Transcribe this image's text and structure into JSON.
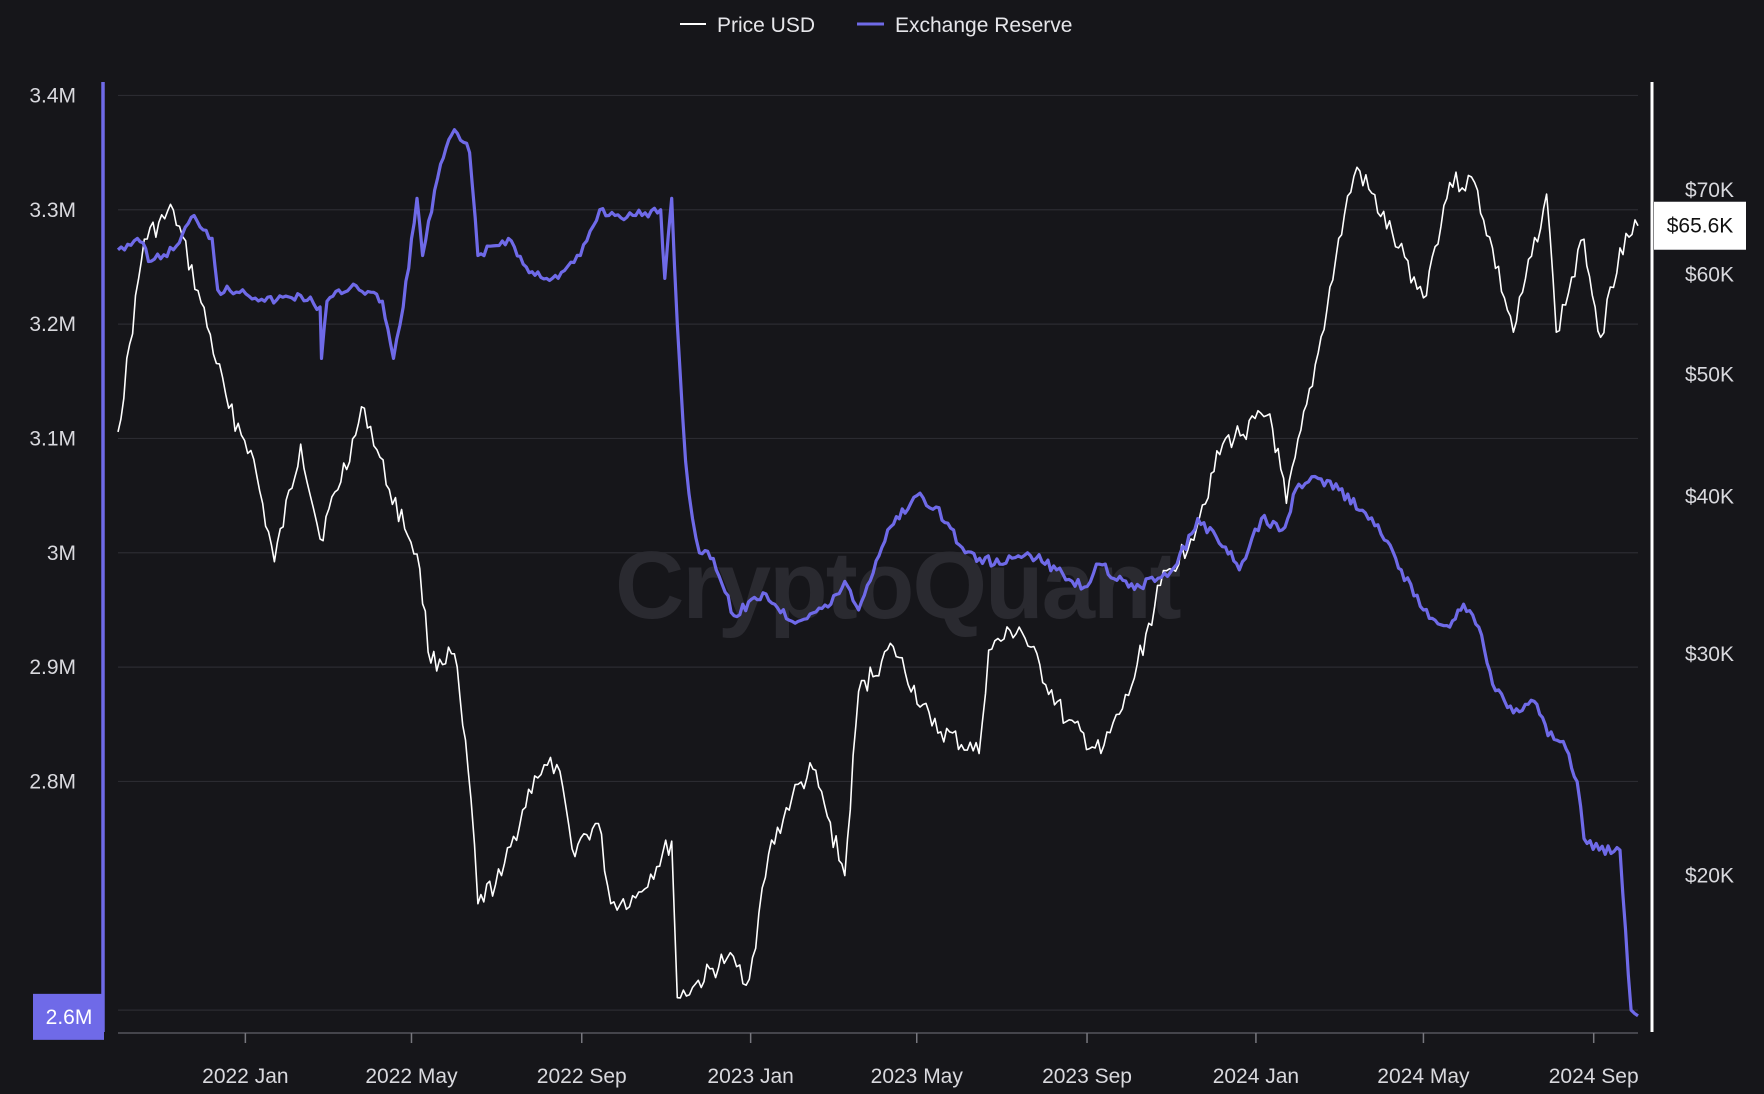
{
  "legend": [
    {
      "label": "Price USD",
      "color": "#ffffff"
    },
    {
      "label": "Exchange Reserve",
      "color": "#6f6ae8"
    }
  ],
  "watermark": "CryptoQuant",
  "colors": {
    "background": "#16161a",
    "grid": "#2b2b31",
    "price": "#ffffff",
    "reserve": "#6f6ae8"
  },
  "chart_data": {
    "type": "line",
    "x_axis": {
      "type": "date",
      "ticks": [
        "2022 Jan",
        "2022 May",
        "2022 Sep",
        "2023 Jan",
        "2023 May",
        "2023 Sep",
        "2024 Jan",
        "2024 May",
        "2024 Sep"
      ],
      "range": [
        "2021-10-01",
        "2024-10-03"
      ]
    },
    "y_left": {
      "label": "",
      "ticks": [
        "3.4M",
        "3.3M",
        "3.2M",
        "3.1M",
        "3M",
        "2.9M",
        "2.8M"
      ],
      "range": [
        2580000,
        3410000
      ],
      "current_value_label": "2.6M"
    },
    "y_right": {
      "label": "",
      "scale": "log",
      "ticks": [
        "$70K",
        "$60K",
        "$50K",
        "$40K",
        "$30K",
        "$20K"
      ],
      "range": [
        15000,
        85000
      ],
      "current_value_label": "$65.6K"
    },
    "grid": true,
    "legend_position": "top-center",
    "series": [
      {
        "name": "Price USD",
        "axis": "right",
        "color": "#ffffff",
        "points": [
          [
            "2021-10-01",
            45000
          ],
          [
            "2021-10-20",
            64000
          ],
          [
            "2021-11-10",
            67500
          ],
          [
            "2021-11-30",
            57000
          ],
          [
            "2021-12-20",
            47000
          ],
          [
            "2022-01-05",
            43500
          ],
          [
            "2022-01-22",
            35500
          ],
          [
            "2022-02-10",
            44000
          ],
          [
            "2022-02-24",
            37000
          ],
          [
            "2022-03-28",
            47000
          ],
          [
            "2022-04-15",
            40500
          ],
          [
            "2022-05-05",
            36000
          ],
          [
            "2022-05-15",
            29500
          ],
          [
            "2022-06-01",
            30000
          ],
          [
            "2022-06-13",
            23000
          ],
          [
            "2022-06-18",
            19000
          ],
          [
            "2022-07-05",
            20000
          ],
          [
            "2022-07-29",
            24000
          ],
          [
            "2022-08-14",
            24500
          ],
          [
            "2022-08-25",
            21000
          ],
          [
            "2022-09-13",
            22000
          ],
          [
            "2022-09-22",
            19000
          ],
          [
            "2022-10-10",
            19200
          ],
          [
            "2022-11-05",
            21300
          ],
          [
            "2022-11-09",
            16000
          ],
          [
            "2022-11-20",
            16300
          ],
          [
            "2022-12-15",
            17200
          ],
          [
            "2022-12-31",
            16550
          ],
          [
            "2023-01-14",
            20800
          ],
          [
            "2023-01-31",
            23100
          ],
          [
            "2023-02-15",
            24300
          ],
          [
            "2023-03-10",
            20000
          ],
          [
            "2023-03-20",
            28000
          ],
          [
            "2023-04-14",
            30400
          ],
          [
            "2023-05-12",
            26300
          ],
          [
            "2023-06-15",
            25000
          ],
          [
            "2023-06-22",
            30200
          ],
          [
            "2023-07-14",
            31500
          ],
          [
            "2023-08-17",
            26500
          ],
          [
            "2023-09-11",
            25000
          ],
          [
            "2023-10-01",
            27800
          ],
          [
            "2023-10-24",
            34000
          ],
          [
            "2023-11-15",
            37000
          ],
          [
            "2023-12-08",
            44000
          ],
          [
            "2024-01-11",
            46500
          ],
          [
            "2024-01-23",
            39500
          ],
          [
            "2024-02-15",
            52000
          ],
          [
            "2024-03-05",
            67000
          ],
          [
            "2024-03-14",
            73000
          ],
          [
            "2024-04-13",
            63000
          ],
          [
            "2024-05-01",
            57500
          ],
          [
            "2024-05-20",
            71000
          ],
          [
            "2024-06-07",
            71000
          ],
          [
            "2024-07-05",
            54000
          ],
          [
            "2024-07-29",
            69500
          ],
          [
            "2024-08-05",
            54000
          ],
          [
            "2024-08-25",
            64000
          ],
          [
            "2024-09-06",
            53500
          ],
          [
            "2024-09-20",
            63000
          ],
          [
            "2024-10-03",
            65600
          ]
        ]
      },
      {
        "name": "Exchange Reserve",
        "axis": "left",
        "color": "#6f6ae8",
        "points": [
          [
            "2021-10-01",
            3265000
          ],
          [
            "2021-10-15",
            3275000
          ],
          [
            "2021-10-25",
            3255000
          ],
          [
            "2021-11-10",
            3265000
          ],
          [
            "2021-11-25",
            3295000
          ],
          [
            "2021-12-08",
            3275000
          ],
          [
            "2021-12-12",
            3230000
          ],
          [
            "2021-12-30",
            3230000
          ],
          [
            "2022-01-15",
            3220000
          ],
          [
            "2022-02-10",
            3225000
          ],
          [
            "2022-02-24",
            3215000
          ],
          [
            "2022-02-25",
            3170000
          ],
          [
            "2022-03-01",
            3220000
          ],
          [
            "2022-03-20",
            3235000
          ],
          [
            "2022-04-10",
            3220000
          ],
          [
            "2022-04-18",
            3170000
          ],
          [
            "2022-04-25",
            3215000
          ],
          [
            "2022-05-05",
            3310000
          ],
          [
            "2022-05-09",
            3260000
          ],
          [
            "2022-05-22",
            3340000
          ],
          [
            "2022-06-01",
            3370000
          ],
          [
            "2022-06-12",
            3350000
          ],
          [
            "2022-06-18",
            3260000
          ],
          [
            "2022-07-10",
            3275000
          ],
          [
            "2022-07-25",
            3245000
          ],
          [
            "2022-08-15",
            3240000
          ],
          [
            "2022-08-31",
            3260000
          ],
          [
            "2022-09-14",
            3300000
          ],
          [
            "2022-09-25",
            3295000
          ],
          [
            "2022-10-10",
            3295000
          ],
          [
            "2022-10-28",
            3300000
          ],
          [
            "2022-10-31",
            3240000
          ],
          [
            "2022-11-05",
            3310000
          ],
          [
            "2022-11-09",
            3200000
          ],
          [
            "2022-11-15",
            3080000
          ],
          [
            "2022-11-20",
            3030000
          ],
          [
            "2022-11-25",
            3000000
          ],
          [
            "2022-12-05",
            2995000
          ],
          [
            "2022-12-20",
            2945000
          ],
          [
            "2023-01-10",
            2965000
          ],
          [
            "2023-01-31",
            2940000
          ],
          [
            "2023-02-28",
            2955000
          ],
          [
            "2023-03-10",
            2975000
          ],
          [
            "2023-03-20",
            2950000
          ],
          [
            "2023-04-10",
            3020000
          ],
          [
            "2023-05-01",
            3050000
          ],
          [
            "2023-05-15",
            3040000
          ],
          [
            "2023-06-05",
            3000000
          ],
          [
            "2023-06-30",
            2990000
          ],
          [
            "2023-07-20",
            3000000
          ],
          [
            "2023-08-10",
            2985000
          ],
          [
            "2023-08-30",
            2970000
          ],
          [
            "2023-09-10",
            2990000
          ],
          [
            "2023-10-01",
            2970000
          ],
          [
            "2023-10-20",
            2975000
          ],
          [
            "2023-11-05",
            2990000
          ],
          [
            "2023-11-20",
            3030000
          ],
          [
            "2023-12-10",
            3005000
          ],
          [
            "2023-12-20",
            2985000
          ],
          [
            "2024-01-05",
            3030000
          ],
          [
            "2024-01-20",
            3020000
          ],
          [
            "2024-02-01",
            3060000
          ],
          [
            "2024-02-15",
            3065000
          ],
          [
            "2024-03-01",
            3055000
          ],
          [
            "2024-03-20",
            3035000
          ],
          [
            "2024-04-05",
            3010000
          ],
          [
            "2024-04-15",
            2985000
          ],
          [
            "2024-05-01",
            2950000
          ],
          [
            "2024-05-20",
            2935000
          ],
          [
            "2024-05-30",
            2955000
          ],
          [
            "2024-06-10",
            2935000
          ],
          [
            "2024-06-20",
            2885000
          ],
          [
            "2024-07-05",
            2860000
          ],
          [
            "2024-07-20",
            2870000
          ],
          [
            "2024-07-30",
            2840000
          ],
          [
            "2024-08-10",
            2835000
          ],
          [
            "2024-08-20",
            2800000
          ],
          [
            "2024-08-25",
            2750000
          ],
          [
            "2024-09-05",
            2740000
          ],
          [
            "2024-09-20",
            2740000
          ],
          [
            "2024-09-28",
            2600000
          ],
          [
            "2024-10-03",
            2595000
          ]
        ]
      }
    ]
  }
}
